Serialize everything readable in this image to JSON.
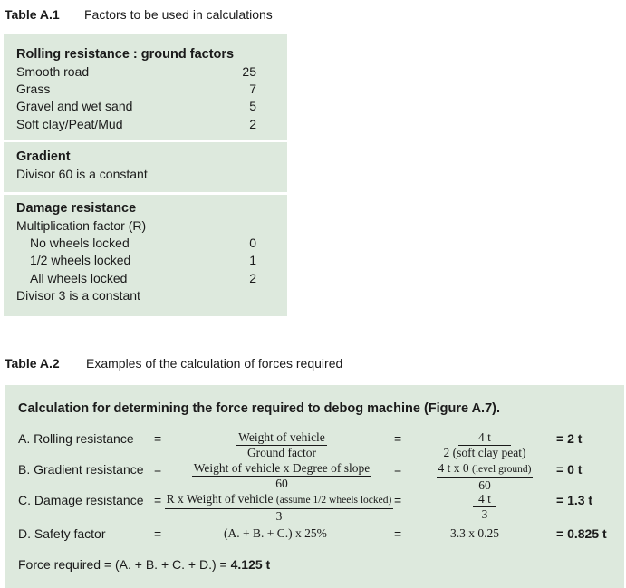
{
  "table1": {
    "number": "Table A.1",
    "title": "Factors to be used in calculations",
    "rolling": {
      "title": "Rolling resistance : ground factors",
      "rows": [
        {
          "label": "Smooth road",
          "value": "25"
        },
        {
          "label": "Grass",
          "value": "7"
        },
        {
          "label": "Gravel and wet sand",
          "value": "5"
        },
        {
          "label": "Soft clay/Peat/Mud",
          "value": "2"
        }
      ]
    },
    "gradient": {
      "title": "Gradient",
      "note": "Divisor 60 is a constant"
    },
    "damage": {
      "title": "Damage resistance",
      "subtitle": "Multiplication factor (R)",
      "rows": [
        {
          "label": "No wheels locked",
          "value": "0"
        },
        {
          "label": "1/2 wheels locked",
          "value": "1"
        },
        {
          "label": "All wheels locked",
          "value": "2"
        }
      ],
      "note": "Divisor 3 is a constant"
    }
  },
  "table2": {
    "number": "Table A.2",
    "title": "Examples of the calculation of forces required",
    "heading": "Calculation for determining the force required to debog machine (Figure A.7).",
    "eq": "=",
    "rows": {
      "a": {
        "label": "A.  Rolling resistance",
        "formula_num": "Weight of vehicle",
        "formula_den": "Ground factor",
        "calc_num": "4 t",
        "calc_den": "2 (soft clay peat)",
        "result": "= 2 t"
      },
      "b": {
        "label": "B.  Gradient resistance",
        "formula_num": "Weight of vehicle x Degree of slope",
        "formula_den": "60",
        "calc_num_main": "4 t x 0",
        "calc_num_note": "(level ground)",
        "calc_den": "60",
        "result": "= 0 t"
      },
      "c": {
        "label": "C.  Damage resistance",
        "formula_num_main": "R x Weight of vehicle",
        "formula_num_note": "(assume 1/2 wheels locked)",
        "formula_den": "3",
        "calc_num": "4 t",
        "calc_den": "3",
        "result": "= 1.3 t"
      },
      "d": {
        "label": "D.  Safety factor",
        "formula": "(A. + B. + C.) x 25%",
        "calc": "3.3 x 0.25",
        "result": "= 0.825 t"
      }
    },
    "force_label": "Force required = (A. + B. + C. + D.) = ",
    "force_value": "4.125 t"
  }
}
